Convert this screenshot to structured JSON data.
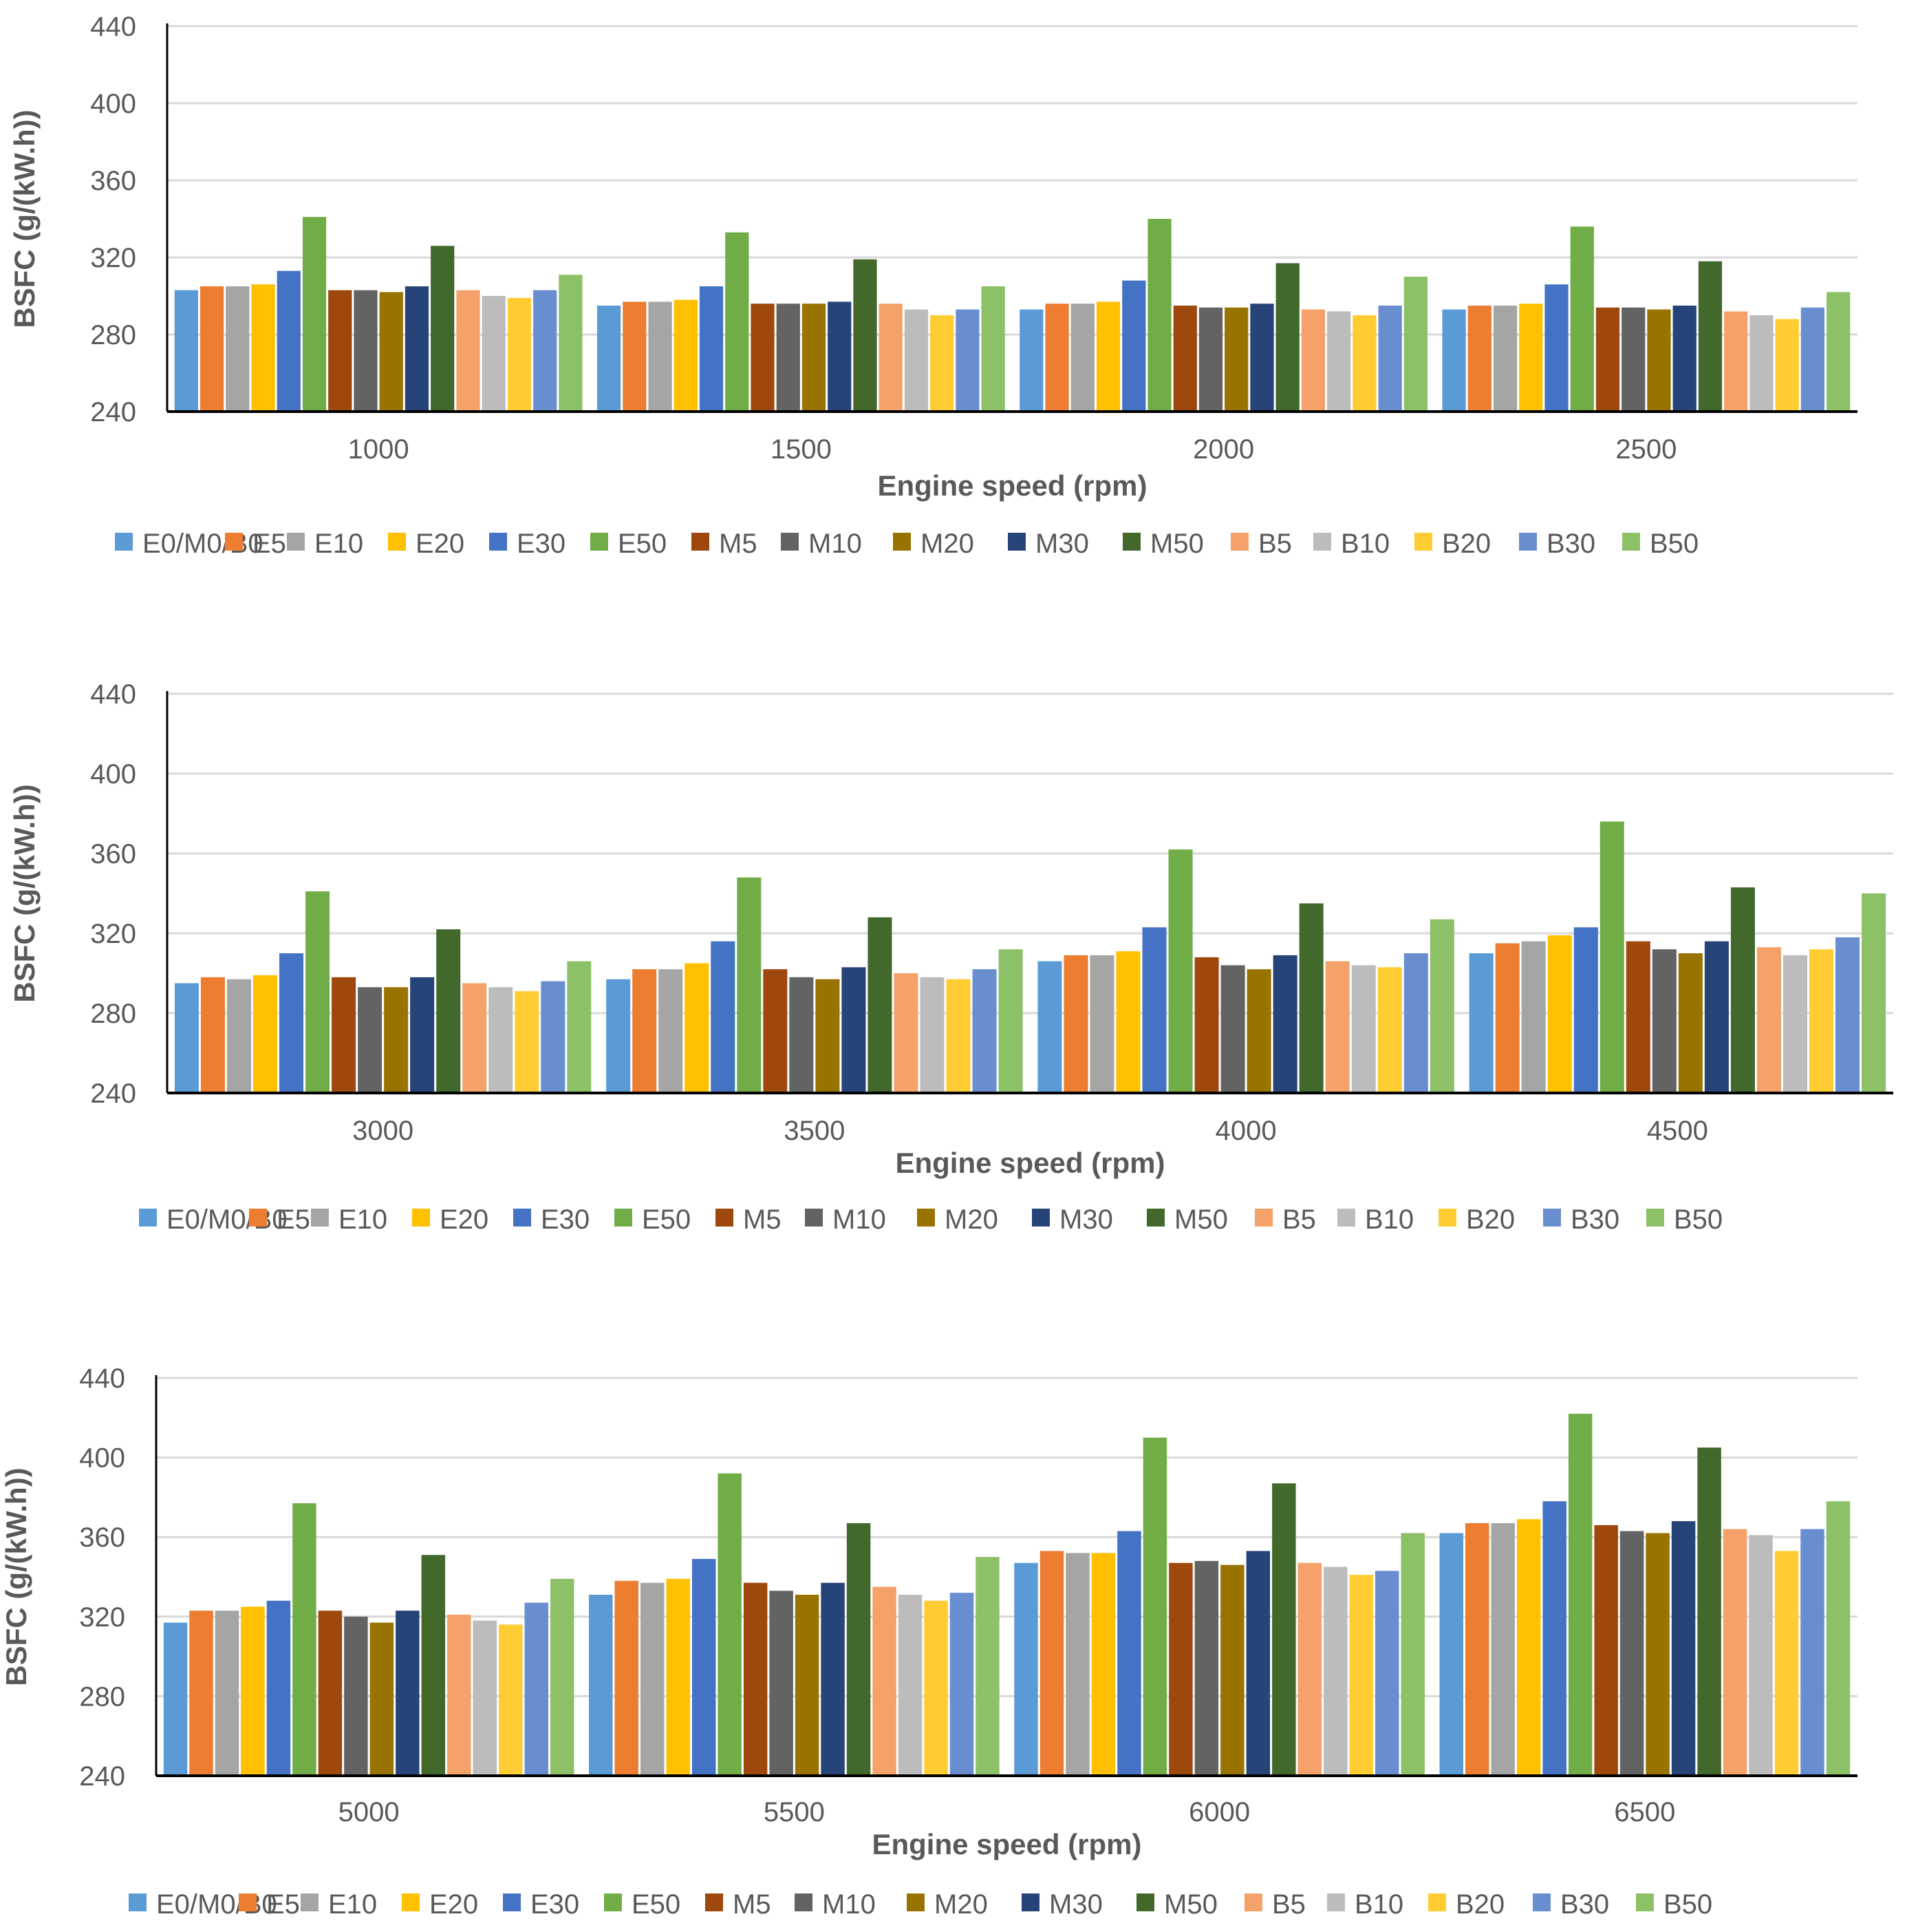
{
  "colors": {
    "E0/M0/B0": "#5B9BD5",
    "E5": "#ED7D31",
    "E10": "#A5A5A5",
    "E20": "#FFC000",
    "E30": "#4472C4",
    "E50": "#70AD47",
    "M5": "#9E480E",
    "M10": "#636363",
    "M20": "#997300",
    "M30": "#264478",
    "M50": "#43682B",
    "B5": "#F4A269",
    "B10": "#BCBCBC",
    "B20": "#FFCD33",
    "B30": "#698ED0",
    "B50": "#8CC168",
    "grid": "#D9D9D9",
    "axis": "#000000",
    "text": "#595959"
  },
  "chart_data": [
    {
      "type": "bar",
      "xlabel": "Engine speed (rpm)",
      "ylabel": "BSFC (g/(kW.h))",
      "ylim": [
        240,
        440
      ],
      "yticks": [
        "240",
        "280",
        "320",
        "360",
        "400",
        "440"
      ],
      "grid": true,
      "legend_position": "bottom",
      "categories": [
        "1000",
        "1500",
        "2000",
        "2500"
      ],
      "series": [
        {
          "name": "E0/M0/B0",
          "values": [
            303,
            295,
            293,
            293
          ]
        },
        {
          "name": "E5",
          "values": [
            305,
            297,
            296,
            295
          ]
        },
        {
          "name": "E10",
          "values": [
            305,
            297,
            296,
            295
          ]
        },
        {
          "name": "E20",
          "values": [
            306,
            298,
            297,
            296
          ]
        },
        {
          "name": "E30",
          "values": [
            313,
            305,
            308,
            306
          ]
        },
        {
          "name": "E50",
          "values": [
            341,
            333,
            340,
            336
          ]
        },
        {
          "name": "M5",
          "values": [
            303,
            296,
            295,
            294
          ]
        },
        {
          "name": "M10",
          "values": [
            303,
            296,
            294,
            294
          ]
        },
        {
          "name": "M20",
          "values": [
            302,
            296,
            294,
            293
          ]
        },
        {
          "name": "M30",
          "values": [
            305,
            297,
            296,
            295
          ]
        },
        {
          "name": "M50",
          "values": [
            326,
            319,
            317,
            318
          ]
        },
        {
          "name": "B5",
          "values": [
            303,
            296,
            293,
            292
          ]
        },
        {
          "name": "B10",
          "values": [
            300,
            293,
            292,
            290
          ]
        },
        {
          "name": "B20",
          "values": [
            299,
            290,
            290,
            288
          ]
        },
        {
          "name": "B30",
          "values": [
            303,
            293,
            295,
            294
          ]
        },
        {
          "name": "B50",
          "values": [
            311,
            305,
            310,
            302
          ]
        }
      ]
    },
    {
      "type": "bar",
      "xlabel": "Engine speed (rpm)",
      "ylabel": "BSFC (g/(kW.h))",
      "ylim": [
        240,
        440
      ],
      "yticks": [
        "240",
        "280",
        "320",
        "360",
        "400",
        "440"
      ],
      "grid": true,
      "legend_position": "bottom",
      "categories": [
        "3000",
        "3500",
        "4000",
        "4500"
      ],
      "series": [
        {
          "name": "E0/M0/B0",
          "values": [
            295,
            297,
            306,
            310
          ]
        },
        {
          "name": "E5",
          "values": [
            298,
            302,
            309,
            315
          ]
        },
        {
          "name": "E10",
          "values": [
            297,
            302,
            309,
            316
          ]
        },
        {
          "name": "E20",
          "values": [
            299,
            305,
            311,
            319
          ]
        },
        {
          "name": "E30",
          "values": [
            310,
            316,
            323,
            323
          ]
        },
        {
          "name": "E50",
          "values": [
            341,
            348,
            362,
            376
          ]
        },
        {
          "name": "M5",
          "values": [
            298,
            302,
            308,
            316
          ]
        },
        {
          "name": "M10",
          "values": [
            293,
            298,
            304,
            312
          ]
        },
        {
          "name": "M20",
          "values": [
            293,
            297,
            302,
            310
          ]
        },
        {
          "name": "M30",
          "values": [
            298,
            303,
            309,
            316
          ]
        },
        {
          "name": "M50",
          "values": [
            322,
            328,
            335,
            343
          ]
        },
        {
          "name": "B5",
          "values": [
            295,
            300,
            306,
            313
          ]
        },
        {
          "name": "B10",
          "values": [
            293,
            298,
            304,
            309
          ]
        },
        {
          "name": "B20",
          "values": [
            291,
            297,
            303,
            312
          ]
        },
        {
          "name": "B30",
          "values": [
            296,
            302,
            310,
            318
          ]
        },
        {
          "name": "B50",
          "values": [
            306,
            312,
            327,
            340
          ]
        }
      ]
    },
    {
      "type": "bar",
      "xlabel": "Engine speed (rpm)",
      "ylabel": "BSFC (g/(kW.h))",
      "ylim": [
        240,
        440
      ],
      "yticks": [
        "240",
        "280",
        "320",
        "360",
        "400",
        "440"
      ],
      "grid": true,
      "legend_position": "bottom",
      "categories": [
        "5000",
        "5500",
        "6000",
        "6500"
      ],
      "series": [
        {
          "name": "E0/M0/B0",
          "values": [
            317,
            331,
            347,
            362
          ]
        },
        {
          "name": "E5",
          "values": [
            323,
            338,
            353,
            367
          ]
        },
        {
          "name": "E10",
          "values": [
            323,
            337,
            352,
            367
          ]
        },
        {
          "name": "E20",
          "values": [
            325,
            339,
            352,
            369
          ]
        },
        {
          "name": "E30",
          "values": [
            328,
            349,
            363,
            378
          ]
        },
        {
          "name": "E50",
          "values": [
            377,
            392,
            410,
            422
          ]
        },
        {
          "name": "M5",
          "values": [
            323,
            337,
            347,
            366
          ]
        },
        {
          "name": "M10",
          "values": [
            320,
            333,
            348,
            363
          ]
        },
        {
          "name": "M20",
          "values": [
            317,
            331,
            346,
            362
          ]
        },
        {
          "name": "M30",
          "values": [
            323,
            337,
            353,
            368
          ]
        },
        {
          "name": "M50",
          "values": [
            351,
            367,
            387,
            405
          ]
        },
        {
          "name": "B5",
          "values": [
            321,
            335,
            347,
            364
          ]
        },
        {
          "name": "B10",
          "values": [
            318,
            331,
            345,
            361
          ]
        },
        {
          "name": "B20",
          "values": [
            316,
            328,
            341,
            353
          ]
        },
        {
          "name": "B30",
          "values": [
            327,
            332,
            343,
            364
          ]
        },
        {
          "name": "B50",
          "values": [
            339,
            350,
            362,
            378
          ]
        }
      ]
    }
  ]
}
